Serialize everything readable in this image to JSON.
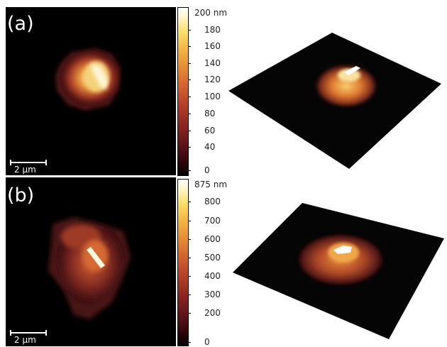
{
  "panels": [
    {
      "letter": "(a)",
      "scale_bar": "2 μm",
      "colorbar": {
        "unit_label": "200 nm",
        "ticks": [
          "180",
          "160",
          "140",
          "120",
          "100",
          "80",
          "60",
          "40",
          "0"
        ]
      }
    },
    {
      "letter": "(b)",
      "scale_bar": "2 μm",
      "colorbar": {
        "unit_label": "875 nm",
        "ticks": [
          "800",
          "700",
          "600",
          "500",
          "400",
          "300",
          "200",
          "0"
        ]
      }
    }
  ],
  "colormap": "afmhot"
}
